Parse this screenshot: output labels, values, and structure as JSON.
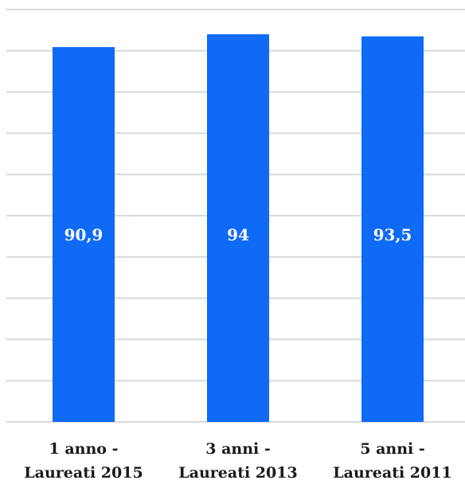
{
  "chart_data": {
    "type": "bar",
    "categories": [
      [
        "1 anno -",
        "Laureati 2015"
      ],
      [
        "3 anni -",
        "Laureati 2013"
      ],
      [
        "5 anni -",
        "Laureati 2011"
      ]
    ],
    "values": [
      90.9,
      94,
      93.5
    ],
    "value_labels": [
      "90,9",
      "94",
      "93,5"
    ],
    "title": "",
    "xlabel": "",
    "ylabel": "",
    "ylim": [
      0,
      100
    ],
    "grid": true,
    "bar_color": "#0f6af5"
  }
}
